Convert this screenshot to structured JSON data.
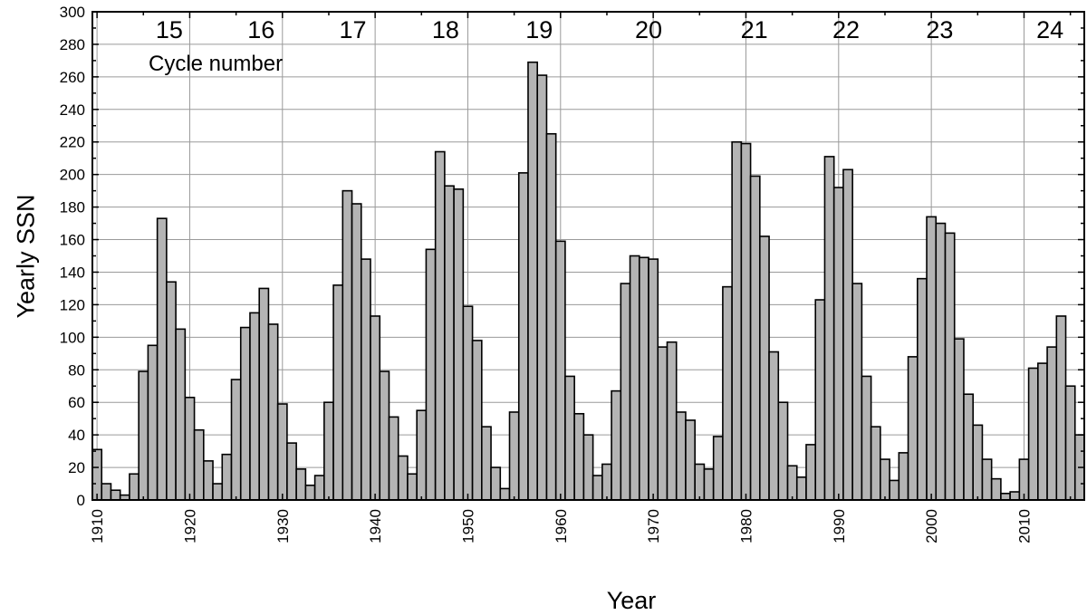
{
  "chart_data": {
    "type": "bar",
    "xlabel": "Year",
    "ylabel": "Yearly SSN",
    "xlim": [
      1909.5,
      2016.5
    ],
    "ylim": [
      0,
      300
    ],
    "x_ticks": [
      1910,
      1920,
      1930,
      1940,
      1950,
      1960,
      1970,
      1980,
      1990,
      2000,
      2010
    ],
    "y_ticks": [
      0,
      20,
      40,
      60,
      80,
      100,
      120,
      140,
      160,
      180,
      200,
      220,
      240,
      260,
      280,
      300
    ],
    "grid": true,
    "bar_color": "#b4b4b4",
    "annotation": "Cycle number",
    "cycles": [
      {
        "label": "15",
        "year": 1917.8
      },
      {
        "label": "16",
        "year": 1927.7
      },
      {
        "label": "17",
        "year": 1937.6
      },
      {
        "label": "18",
        "year": 1947.6
      },
      {
        "label": "19",
        "year": 1957.7
      },
      {
        "label": "20",
        "year": 1969.5
      },
      {
        "label": "21",
        "year": 1980.9
      },
      {
        "label": "22",
        "year": 1990.8
      },
      {
        "label": "23",
        "year": 2000.9
      },
      {
        "label": "24",
        "year": 2012.8
      }
    ],
    "series": [
      {
        "x": [
          1910,
          1911,
          1912,
          1913,
          1914,
          1915,
          1916,
          1917,
          1918,
          1919,
          1920,
          1921,
          1922,
          1923,
          1924,
          1925,
          1926,
          1927,
          1928,
          1929,
          1930,
          1931,
          1932,
          1933,
          1934,
          1935,
          1936,
          1937,
          1938,
          1939,
          1940,
          1941,
          1942,
          1943,
          1944,
          1945,
          1946,
          1947,
          1948,
          1949,
          1950,
          1951,
          1952,
          1953,
          1954,
          1955,
          1956,
          1957,
          1958,
          1959,
          1960,
          1961,
          1962,
          1963,
          1964,
          1965,
          1966,
          1967,
          1968,
          1969,
          1970,
          1971,
          1972,
          1973,
          1974,
          1975,
          1976,
          1977,
          1978,
          1979,
          1980,
          1981,
          1982,
          1983,
          1984,
          1985,
          1986,
          1987,
          1988,
          1989,
          1990,
          1991,
          1992,
          1993,
          1994,
          1995,
          1996,
          1997,
          1998,
          1999,
          2000,
          2001,
          2002,
          2003,
          2004,
          2005,
          2006,
          2007,
          2008,
          2009,
          2010,
          2011,
          2012,
          2013,
          2014,
          2015,
          2016
        ],
        "values": [
          31,
          10,
          6,
          3,
          16,
          79,
          95,
          173,
          134,
          105,
          63,
          43,
          24,
          10,
          28,
          74,
          106,
          115,
          130,
          108,
          59,
          35,
          19,
          9,
          15,
          60,
          132,
          190,
          182,
          148,
          113,
          79,
          51,
          27,
          16,
          55,
          154,
          214,
          193,
          191,
          119,
          98,
          45,
          20,
          7,
          54,
          201,
          269,
          261,
          225,
          159,
          76,
          53,
          40,
          15,
          22,
          67,
          133,
          150,
          149,
          148,
          94,
          97,
          54,
          49,
          22,
          19,
          39,
          131,
          220,
          219,
          199,
          162,
          91,
          60,
          21,
          14,
          34,
          123,
          211,
          192,
          203,
          133,
          76,
          45,
          25,
          12,
          29,
          88,
          136,
          174,
          170,
          164,
          99,
          65,
          46,
          25,
          13,
          4,
          5,
          25,
          81,
          84,
          94,
          113,
          70,
          40
        ]
      }
    ]
  }
}
